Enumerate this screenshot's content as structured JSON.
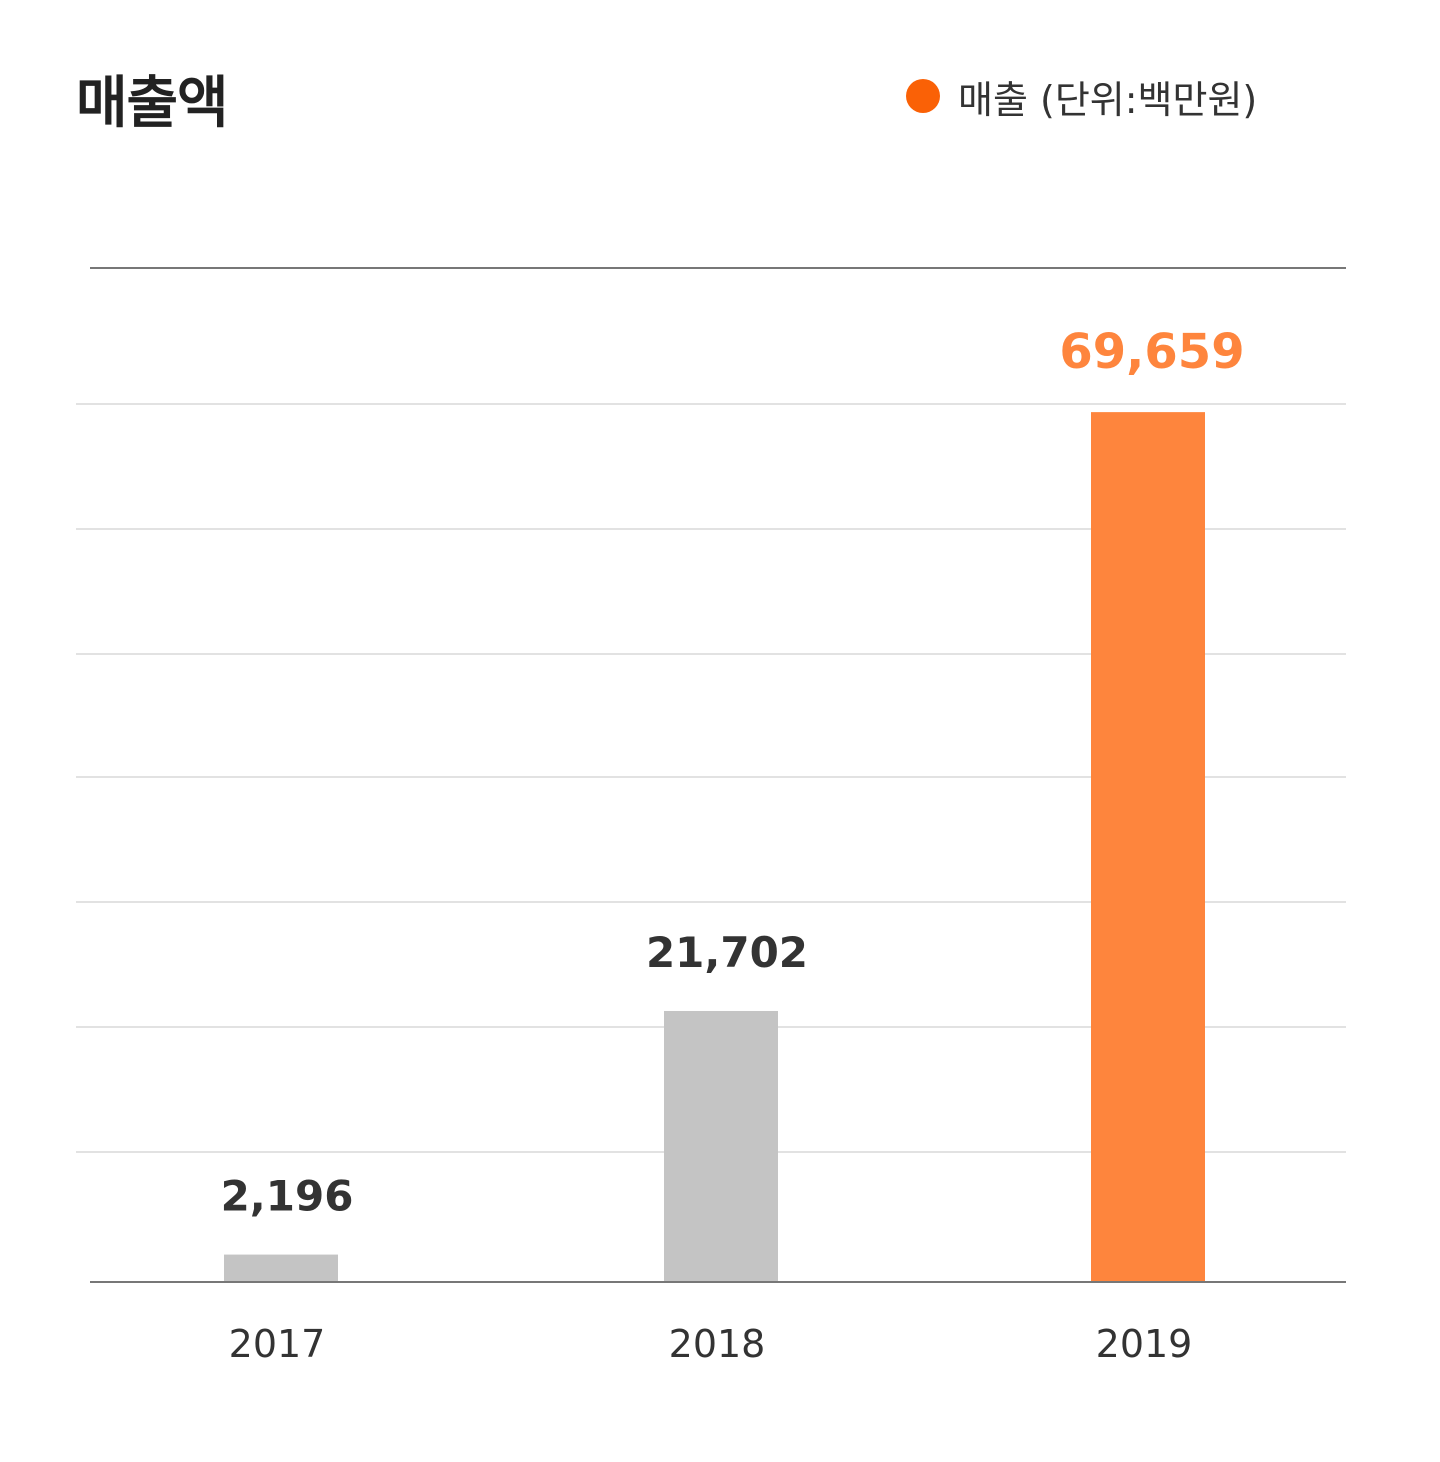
{
  "title": "매출액",
  "legend": {
    "label": "매출 (단위:백만원)",
    "color": "#fa6106"
  },
  "colors": {
    "bar_default": "#c4c4c4",
    "bar_highlight": "#fe853d",
    "label_default": "#333333",
    "label_highlight": "#fe853d"
  },
  "chart_data": {
    "type": "bar",
    "categories": [
      "2017",
      "2018",
      "2019"
    ],
    "values": [
      2196,
      21702,
      69659
    ],
    "value_labels": [
      "2,196",
      "21,702",
      "69,659"
    ],
    "highlight_index": 2,
    "ylim": [
      0,
      81200
    ],
    "grid": true,
    "legend_position": "top-right"
  }
}
